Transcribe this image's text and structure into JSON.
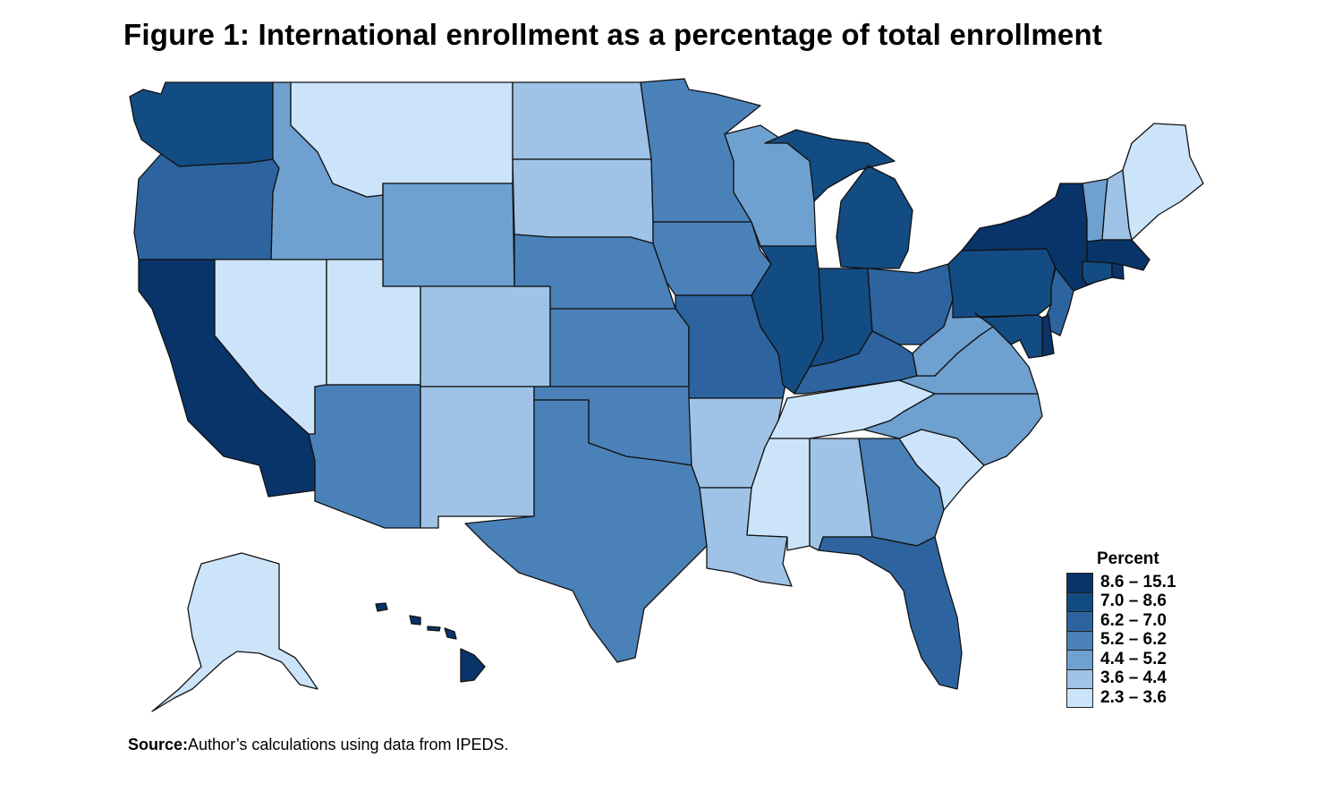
{
  "title": "Figure 1: International enrollment as a percentage of total enrollment",
  "legend": {
    "title": "Percent",
    "classes": [
      {
        "label": "8.6 – 15.1",
        "color": "#083469"
      },
      {
        "label": "7.0 – 8.6",
        "color": "#134c82"
      },
      {
        "label": "6.2 – 7.0",
        "color": "#2d64a0"
      },
      {
        "label": "5.2 – 6.2",
        "color": "#4a81b8"
      },
      {
        "label": "4.4 – 5.2",
        "color": "#6ea0d0"
      },
      {
        "label": "3.6 – 4.4",
        "color": "#9ec3e6"
      },
      {
        "label": "2.3 – 3.6",
        "color": "#cce4fa"
      }
    ]
  },
  "states": {
    "WA": 1,
    "OR": 2,
    "CA": 0,
    "NV": 6,
    "ID": 4,
    "MT": 6,
    "WY": 4,
    "UT": 6,
    "AZ": 3,
    "CO": 5,
    "NM": 5,
    "ND": 5,
    "SD": 5,
    "NE": 3,
    "KS": 3,
    "OK": 3,
    "TX": 3,
    "MN": 3,
    "IA": 3,
    "MO": 2,
    "AR": 5,
    "LA": 5,
    "WI": 4,
    "IL": 1,
    "MI": 1,
    "IN": 1,
    "OH": 2,
    "KY": 2,
    "TN": 6,
    "MS": 6,
    "AL": 5,
    "GA": 3,
    "FL": 2,
    "SC": 6,
    "NC": 4,
    "VA": 4,
    "WV": 4,
    "PA": 1,
    "NY": 0,
    "VT": 4,
    "NH": 5,
    "ME": 6,
    "MA": 0,
    "CT": 1,
    "RI": 0,
    "NJ": 2,
    "DE": 0,
    "MD": 1,
    "AK": 6,
    "HI": 0
  },
  "source": {
    "label": "Source:",
    "text": "Author’s calculations using data from IPEDS."
  }
}
